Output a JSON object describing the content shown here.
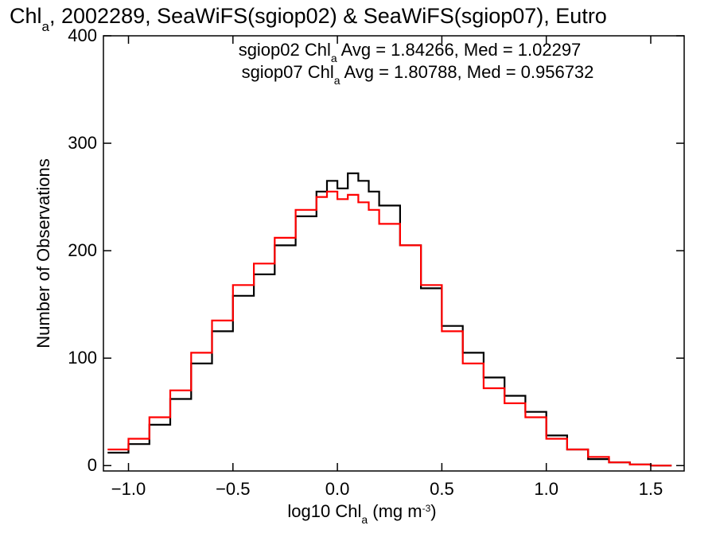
{
  "chart_data": {
    "type": "line",
    "title": {
      "parts": [
        {
          "text": "Chl",
          "sub": false
        },
        {
          "text": "a",
          "sub": true
        },
        {
          "text": ", 2002289, SeaWiFS(sgiop02) & SeaWiFS(sgiop07), Eutro",
          "sub": false
        }
      ]
    },
    "xlabel": {
      "parts": [
        {
          "text": "log10 Chl",
          "sub": false
        },
        {
          "text": "a",
          "sub": true
        },
        {
          "text": " (mg m",
          "sub": false
        },
        {
          "text": "-3",
          "sup": true
        },
        {
          "text": ")",
          "sub": false
        }
      ]
    },
    "ylabel": "Number of Observations",
    "xlim": [
      -1.12,
      1.66
    ],
    "ylim": [
      -5,
      400
    ],
    "xticks": [
      -1.0,
      -0.5,
      0.0,
      0.5,
      1.0,
      1.5
    ],
    "xtick_labels": [
      "−1.0",
      "−0.5",
      "0.0",
      "0.5",
      "1.0",
      "1.5"
    ],
    "yticks": [
      0,
      100,
      200,
      300,
      400
    ],
    "ytick_labels": [
      "0",
      "100",
      "200",
      "300",
      "400"
    ],
    "grid": false,
    "annotations": [
      {
        "name": "sgiop02-stats",
        "color": "#000000",
        "parts": [
          {
            "text": "sgiop02 Chl",
            "sub": false
          },
          {
            "text": "a",
            "sub": true
          },
          {
            "text": " Avg = 1.84266, Med = 1.02297",
            "sub": false
          }
        ]
      },
      {
        "name": "sgiop07-stats",
        "color": "#ff0000",
        "parts": [
          {
            "text": "sgiop07 Chl",
            "sub": false
          },
          {
            "text": "a",
            "sub": true
          },
          {
            "text": " Avg = 1.80788, Med = 0.956732",
            "sub": false
          }
        ]
      }
    ],
    "series": [
      {
        "name": "sgiop02",
        "color": "#000000",
        "x": [
          -1.1,
          -1.0,
          -0.9,
          -0.8,
          -0.7,
          -0.6,
          -0.5,
          -0.4,
          -0.3,
          -0.2,
          -0.1,
          -0.05,
          0.0,
          0.05,
          0.1,
          0.15,
          0.2,
          0.3,
          0.4,
          0.5,
          0.6,
          0.7,
          0.8,
          0.9,
          1.0,
          1.1,
          1.2,
          1.3,
          1.4,
          1.5,
          1.6
        ],
        "y": [
          12,
          20,
          38,
          62,
          95,
          125,
          158,
          178,
          205,
          232,
          255,
          265,
          258,
          272,
          265,
          255,
          242,
          205,
          165,
          130,
          105,
          82,
          65,
          50,
          28,
          15,
          6,
          3,
          1,
          0,
          0
        ]
      },
      {
        "name": "sgiop07",
        "color": "#ff0000",
        "x": [
          -1.1,
          -1.0,
          -0.9,
          -0.8,
          -0.7,
          -0.6,
          -0.5,
          -0.4,
          -0.3,
          -0.2,
          -0.1,
          -0.05,
          0.0,
          0.05,
          0.1,
          0.15,
          0.2,
          0.3,
          0.4,
          0.5,
          0.6,
          0.7,
          0.8,
          0.9,
          1.0,
          1.1,
          1.2,
          1.3,
          1.4,
          1.5,
          1.6
        ],
        "y": [
          15,
          25,
          45,
          70,
          105,
          135,
          168,
          188,
          212,
          238,
          250,
          255,
          248,
          252,
          245,
          238,
          225,
          205,
          168,
          125,
          95,
          72,
          58,
          45,
          25,
          15,
          8,
          3,
          1,
          0,
          0
        ]
      }
    ]
  }
}
